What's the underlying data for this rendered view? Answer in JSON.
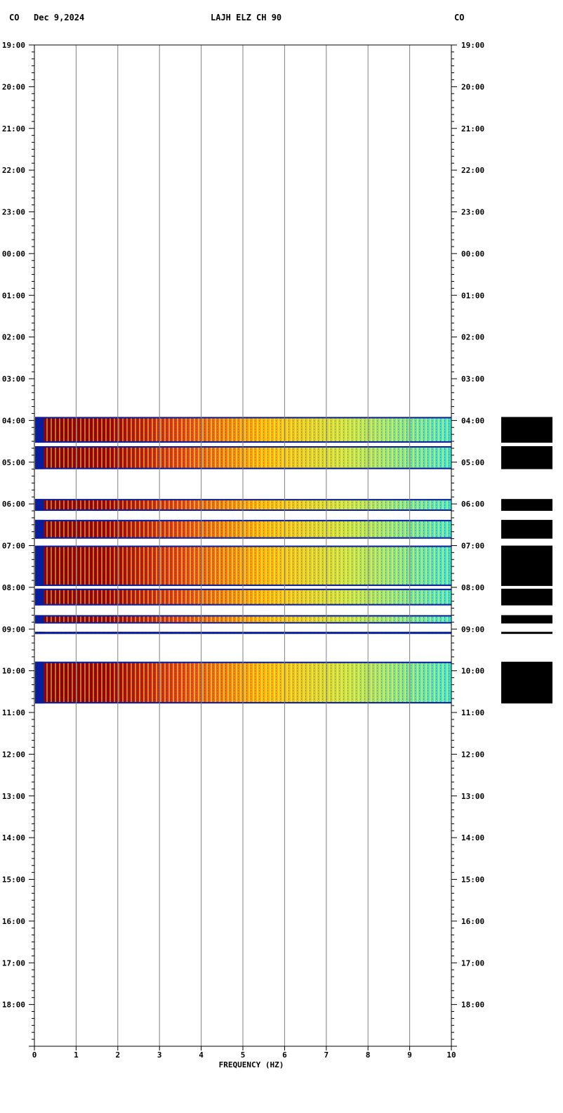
{
  "header": {
    "left_network": "CO",
    "date": "Dec 9,2024",
    "station": "LAJH ELZ CH 90",
    "right_network": "CO"
  },
  "colors": {
    "background": "#ffffff",
    "gridline": "#808080",
    "axis": "#000000",
    "spectro_low": "#0a1e9c",
    "spectro_high": "#8b0000",
    "spectro_mid": "#ffd000",
    "spectro_cyan": "#40e0d0"
  },
  "chart_data": {
    "type": "heatmap",
    "title": "LAJH ELZ CH 90",
    "xlabel": "FREQUENCY (HZ)",
    "ylabel": "",
    "xlim": [
      0,
      10
    ],
    "x_ticks": [
      "0",
      "1",
      "2",
      "3",
      "4",
      "5",
      "6",
      "7",
      "8",
      "9",
      "10"
    ],
    "y_start": "19:00",
    "y_ticks": [
      "19:00",
      "20:00",
      "21:00",
      "22:00",
      "23:00",
      "00:00",
      "01:00",
      "02:00",
      "03:00",
      "04:00",
      "05:00",
      "06:00",
      "07:00",
      "08:00",
      "09:00",
      "10:00",
      "11:00",
      "12:00",
      "13:00",
      "14:00",
      "15:00",
      "16:00",
      "17:00",
      "18:00"
    ],
    "hours_span": 24,
    "grid": true,
    "data_segments": [
      {
        "start": "03:55",
        "end": "04:32"
      },
      {
        "start": "04:37",
        "end": "05:10"
      },
      {
        "start": "05:53",
        "end": "06:10"
      },
      {
        "start": "06:23",
        "end": "06:50"
      },
      {
        "start": "07:00",
        "end": "07:58"
      },
      {
        "start": "08:02",
        "end": "08:26"
      },
      {
        "start": "08:40",
        "end": "08:52"
      },
      {
        "start": "09:04",
        "end": "09:07"
      },
      {
        "start": "09:47",
        "end": "10:47"
      }
    ]
  }
}
